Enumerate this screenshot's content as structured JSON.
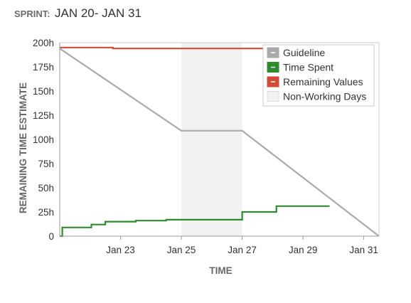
{
  "header": {
    "label": "SPRINT:",
    "dates": "JAN 20- JAN 31"
  },
  "chart_data": {
    "type": "line",
    "xlabel": "TIME",
    "ylabel": "REMAINING TIME ESTIMATE",
    "ylim": [
      0,
      200
    ],
    "y_ticks": [
      "0",
      "25h",
      "50h",
      "75h",
      "100h",
      "125h",
      "150h",
      "175h",
      "200h"
    ],
    "y_tick_values": [
      0,
      25,
      50,
      75,
      100,
      125,
      150,
      175,
      200
    ],
    "x_ticks": [
      "Jan 23",
      "Jan 25",
      "Jan 27",
      "Jan 29",
      "Jan 31"
    ],
    "x_tick_values": [
      "2024-01-23",
      "2024-01-25",
      "2024-01-27",
      "2024-01-29",
      "2024-01-31"
    ],
    "xlim": [
      "2024-01-21",
      "2024-01-31T12:00"
    ],
    "non_working": {
      "name": "Non-Working Days",
      "start": "2024-01-25",
      "end": "2024-01-27",
      "color": "#f2f2f2"
    },
    "legend_position": "top-right",
    "series": [
      {
        "name": "Guideline",
        "color": "#aaaaaa",
        "step": false,
        "points": [
          [
            "2024-01-21",
            194
          ],
          [
            "2024-01-25",
            109
          ],
          [
            "2024-01-27",
            109
          ],
          [
            "2024-01-31T12:00",
            0
          ]
        ]
      },
      {
        "name": "Time Spent",
        "color": "#2e8b2e",
        "step": true,
        "points": [
          [
            "2024-01-21",
            0
          ],
          [
            "2024-01-21T02:00",
            9
          ],
          [
            "2024-01-22T01:00",
            12
          ],
          [
            "2024-01-22T12:00",
            15
          ],
          [
            "2024-01-23T12:00",
            16
          ],
          [
            "2024-01-24T12:00",
            17
          ],
          [
            "2024-01-27",
            25
          ],
          [
            "2024-01-28T03:00",
            31
          ],
          [
            "2024-01-29T21:00",
            31
          ]
        ]
      },
      {
        "name": "Remaining Values",
        "color": "#d24a3a",
        "step": true,
        "points": [
          [
            "2024-01-21",
            195
          ],
          [
            "2024-01-22T18:00",
            194
          ],
          [
            "2024-01-27T18:00",
            194
          ]
        ]
      }
    ]
  }
}
